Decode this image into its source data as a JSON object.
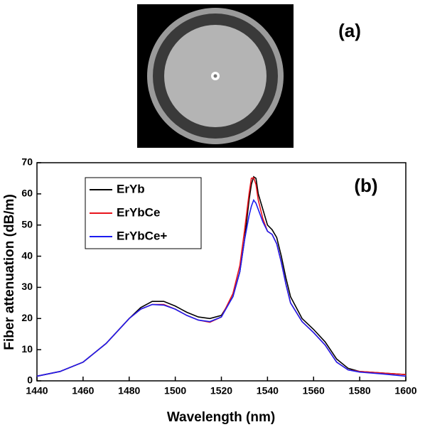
{
  "chart_data": {
    "type": "line",
    "annotations": [
      "(a)",
      "(b)"
    ],
    "xlabel": "Wavelength (nm)",
    "ylabel": "Fiber attenuation (dB/m)",
    "x": [
      1440,
      1450,
      1460,
      1470,
      1480,
      1485,
      1490,
      1495,
      1500,
      1505,
      1510,
      1515,
      1520,
      1525,
      1528,
      1530,
      1532,
      1533,
      1534,
      1535,
      1536,
      1538,
      1540,
      1542,
      1544,
      1546,
      1548,
      1550,
      1555,
      1560,
      1565,
      1570,
      1575,
      1580,
      1590,
      1600
    ],
    "series": [
      {
        "name": "ErYb",
        "color": "#000000",
        "values": [
          1.5,
          3,
          6,
          12,
          20,
          23.5,
          25.5,
          25.5,
          24,
          22,
          20.5,
          20,
          21,
          27,
          35,
          45,
          58,
          63,
          65.5,
          65,
          60,
          55,
          50,
          48.5,
          46,
          40,
          33,
          27,
          20,
          16.5,
          12.5,
          7,
          4,
          3,
          2.5,
          2
        ]
      },
      {
        "name": "ErYbCe",
        "color": "#e8141c",
        "values": [
          1.5,
          3,
          6,
          12,
          20,
          23,
          24.5,
          24.5,
          23,
          21,
          19.5,
          18.8,
          20.5,
          28,
          37,
          48,
          60,
          65,
          65.2,
          63,
          58,
          52,
          48,
          47,
          44,
          38,
          31,
          25,
          19,
          15.5,
          11.5,
          6,
          3.5,
          3,
          2.5,
          2
        ]
      },
      {
        "name": "ErYbCe+",
        "color": "#1c1cf0",
        "values": [
          1.5,
          3,
          6,
          12,
          20,
          23,
          24.5,
          24.3,
          23,
          21,
          19.5,
          19,
          20.5,
          27,
          35,
          45,
          53,
          56,
          58,
          57,
          55,
          51,
          48,
          47,
          44,
          38,
          31,
          25,
          19,
          15.5,
          11.5,
          6,
          3.5,
          2.8,
          2.2,
          1.5
        ]
      }
    ],
    "xlim": [
      1440,
      1600
    ],
    "xticks": [
      1440,
      1460,
      1480,
      1500,
      1520,
      1540,
      1560,
      1580,
      1600
    ],
    "ylim": [
      0,
      70
    ],
    "yticks": [
      0,
      10,
      20,
      30,
      40,
      50,
      60,
      70
    ],
    "legend": "upper left"
  }
}
